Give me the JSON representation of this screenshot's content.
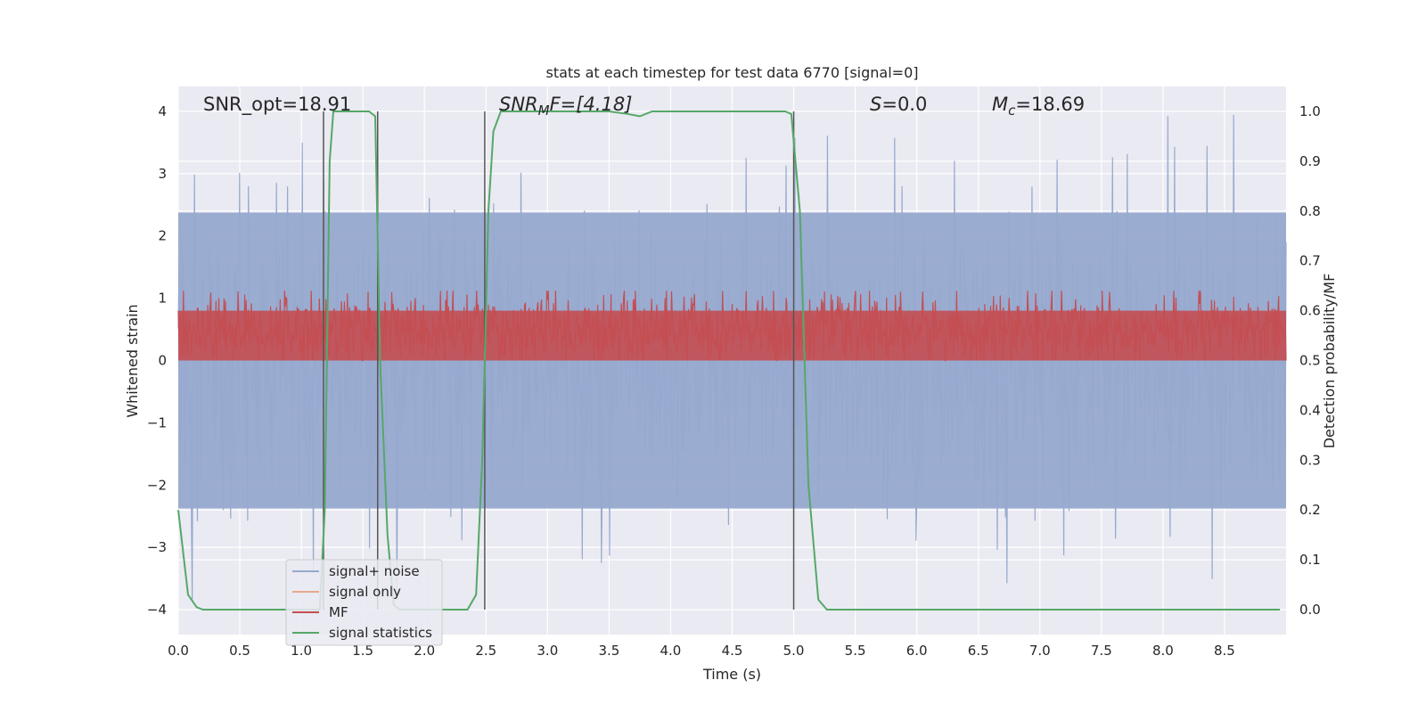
{
  "chart_data": {
    "type": "line",
    "title": "stats at each timestep for test data 6770 [signal=0]",
    "xlabel": "Time (s)",
    "ylabel_left": "Whitened strain",
    "ylabel_right": "Detection probability/MF",
    "xlim": [
      0.0,
      9.0
    ],
    "ylim_left": [
      -4.4,
      4.4
    ],
    "ylim_right": [
      -0.05,
      1.05
    ],
    "xticks": [
      "0.0",
      "0.5",
      "1.0",
      "1.5",
      "2.0",
      "2.5",
      "3.0",
      "3.5",
      "4.0",
      "4.5",
      "5.0",
      "5.5",
      "6.0",
      "6.5",
      "7.0",
      "7.5",
      "8.0",
      "8.5"
    ],
    "yticks_left": [
      "4",
      "3",
      "2",
      "1",
      "0",
      "−1",
      "−2",
      "−3",
      "−4"
    ],
    "yticks_right": [
      "1.0",
      "0.9",
      "0.8",
      "0.7",
      "0.6",
      "0.5",
      "0.4",
      "0.3",
      "0.2",
      "0.1",
      "0.0"
    ],
    "grid": true,
    "legend_position": "bottom-left",
    "annotations": {
      "snr_opt": "SNR_opt=18.91",
      "snr_mf_symbol": "SNR",
      "snr_mf_sub": "M",
      "snr_mf_rest": "F=[4.18]",
      "s_symbol": "S",
      "s_value": "=0.0",
      "mc_symbol": "M",
      "mc_sub": "c",
      "mc_value": "=18.69"
    },
    "vertical_markers": [
      1.18,
      1.62,
      2.49,
      5.0
    ],
    "series": [
      {
        "name": "signal+ noise",
        "color": "#97a9cf",
        "amplitude_typical": 2.5,
        "amplitude_peak": 4.0
      },
      {
        "name": "signal only",
        "color": "#e8a98c",
        "values": []
      },
      {
        "name": "MF",
        "color": "#c44e52",
        "range": [
          0.0,
          1.0
        ]
      },
      {
        "name": "signal statistics",
        "color": "#55a868",
        "axis": "right",
        "points": [
          [
            0.0,
            0.2
          ],
          [
            0.08,
            0.03
          ],
          [
            0.15,
            0.005
          ],
          [
            0.2,
            0.0
          ],
          [
            0.5,
            0.0
          ],
          [
            1.0,
            0.0
          ],
          [
            1.15,
            0.0
          ],
          [
            1.19,
            0.2
          ],
          [
            1.23,
            0.9
          ],
          [
            1.26,
            1.0
          ],
          [
            1.4,
            1.0
          ],
          [
            1.55,
            1.0
          ],
          [
            1.6,
            0.99
          ],
          [
            1.64,
            0.5
          ],
          [
            1.7,
            0.15
          ],
          [
            1.75,
            0.01
          ],
          [
            1.8,
            0.0
          ],
          [
            2.0,
            0.0
          ],
          [
            2.35,
            0.0
          ],
          [
            2.42,
            0.03
          ],
          [
            2.47,
            0.3
          ],
          [
            2.52,
            0.8
          ],
          [
            2.56,
            0.96
          ],
          [
            2.62,
            1.0
          ],
          [
            3.0,
            1.0
          ],
          [
            3.5,
            1.0
          ],
          [
            3.65,
            0.995
          ],
          [
            3.75,
            0.99
          ],
          [
            3.85,
            1.0
          ],
          [
            4.5,
            1.0
          ],
          [
            4.93,
            1.0
          ],
          [
            4.98,
            0.995
          ],
          [
            5.05,
            0.8
          ],
          [
            5.12,
            0.25
          ],
          [
            5.2,
            0.02
          ],
          [
            5.27,
            0.0
          ],
          [
            6.0,
            0.0
          ],
          [
            7.0,
            0.0
          ],
          [
            8.0,
            0.0
          ],
          [
            8.95,
            0.0
          ]
        ]
      }
    ]
  }
}
